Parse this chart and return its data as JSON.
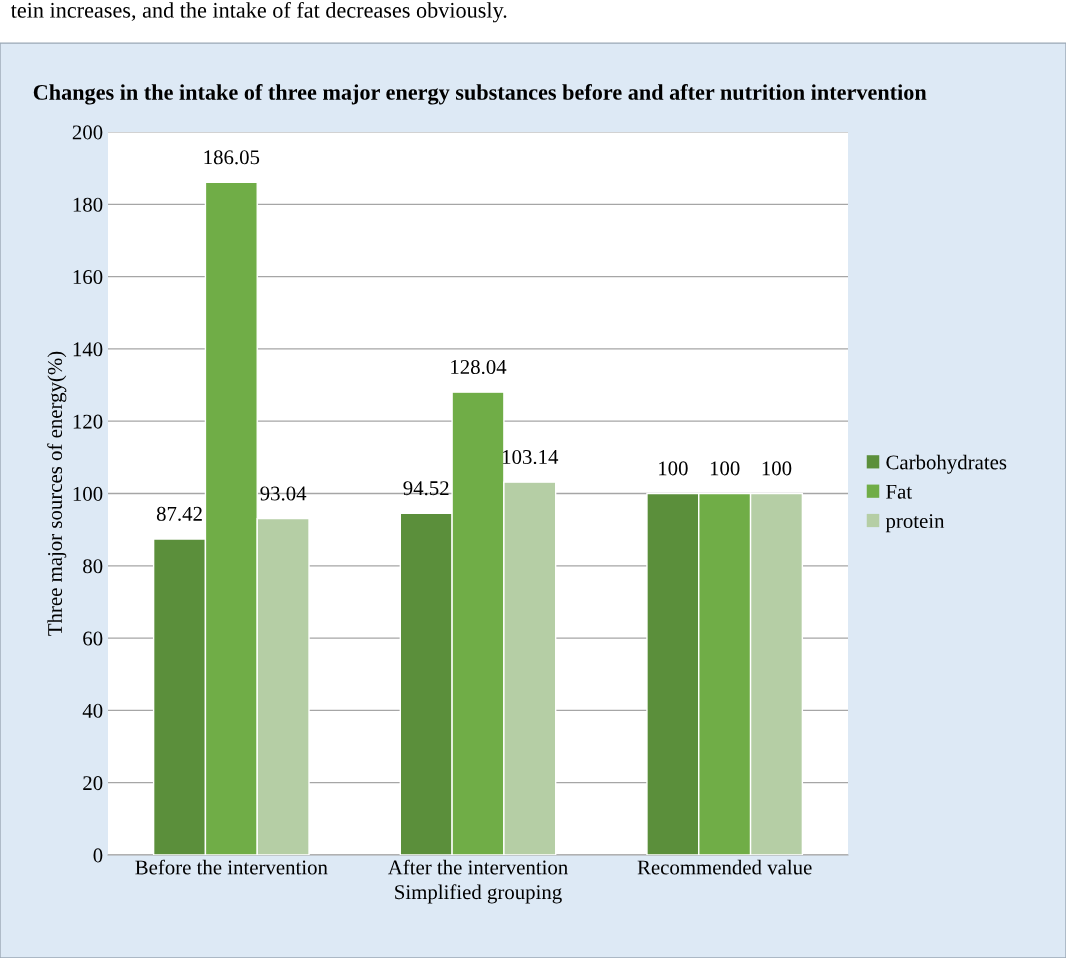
{
  "chart_data": {
    "type": "bar",
    "title": "Changes in the intake of three major energy substances before and after nutrition intervention",
    "xlabel": "Simplified grouping",
    "ylabel": "Three major sources of energy(%)",
    "annotations": [
      "tein increases, and the intake of fat decreases obviously."
    ],
    "categories": [
      "Before the intervention",
      "After the intervention",
      "Recommended value"
    ],
    "series": [
      {
        "name": "Carbohydrates",
        "color": "#5b8f3b",
        "values": [
          87.42,
          94.52,
          100
        ]
      },
      {
        "name": "Fat",
        "color": "#70ad47",
        "values": [
          186.05,
          128.04,
          100
        ]
      },
      {
        "name": "protein",
        "color": "#b5cea5",
        "values": [
          93.04,
          103.14,
          100
        ]
      }
    ],
    "ylim": [
      0,
      200
    ],
    "yticks": [
      0,
      20,
      40,
      60,
      80,
      100,
      120,
      140,
      160,
      180,
      200
    ],
    "grid": "y",
    "legend": "right",
    "data_labels": true
  }
}
